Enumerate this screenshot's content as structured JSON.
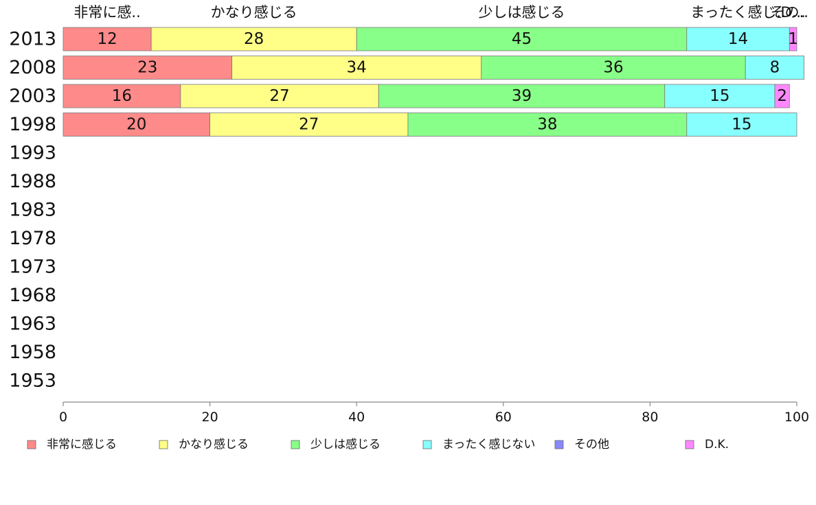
{
  "chart_data": {
    "type": "bar",
    "orientation": "horizontal",
    "stacked": true,
    "years": [
      "2013",
      "2008",
      "2003",
      "1998",
      "1993",
      "1988",
      "1983",
      "1978",
      "1973",
      "1968",
      "1963",
      "1958",
      "1953"
    ],
    "series": [
      {
        "name": "非常に感じる",
        "color": "#ff8a8a",
        "values": [
          12,
          23,
          16,
          20,
          null,
          null,
          null,
          null,
          null,
          null,
          null,
          null,
          null
        ]
      },
      {
        "name": "かなり感じる",
        "color": "#ffff88",
        "values": [
          28,
          34,
          27,
          27,
          null,
          null,
          null,
          null,
          null,
          null,
          null,
          null,
          null
        ]
      },
      {
        "name": "少しは感じる",
        "color": "#88ff88",
        "values": [
          45,
          36,
          39,
          38,
          null,
          null,
          null,
          null,
          null,
          null,
          null,
          null,
          null
        ]
      },
      {
        "name": "まったく感じない",
        "color": "#88ffff",
        "values": [
          14,
          8,
          15,
          15,
          null,
          null,
          null,
          null,
          null,
          null,
          null,
          null,
          null
        ]
      },
      {
        "name": "その他",
        "color": "#8888ff",
        "values": [
          0,
          0,
          0,
          0,
          null,
          null,
          null,
          null,
          null,
          null,
          null,
          null,
          null
        ]
      },
      {
        "name": "D.K.",
        "color": "#ff88ff",
        "values": [
          1,
          0,
          2,
          0,
          null,
          null,
          null,
          null,
          null,
          null,
          null,
          null,
          null
        ]
      }
    ],
    "top_labels": [
      "非常に感..",
      "かなり感じる",
      "少しは感じる",
      "まったく感じ..",
      "その..",
      "D..."
    ],
    "xlim": [
      0,
      100
    ],
    "xticks": [
      0,
      20,
      40,
      60,
      80,
      100
    ],
    "legend_position": "bottom",
    "grid": false
  }
}
